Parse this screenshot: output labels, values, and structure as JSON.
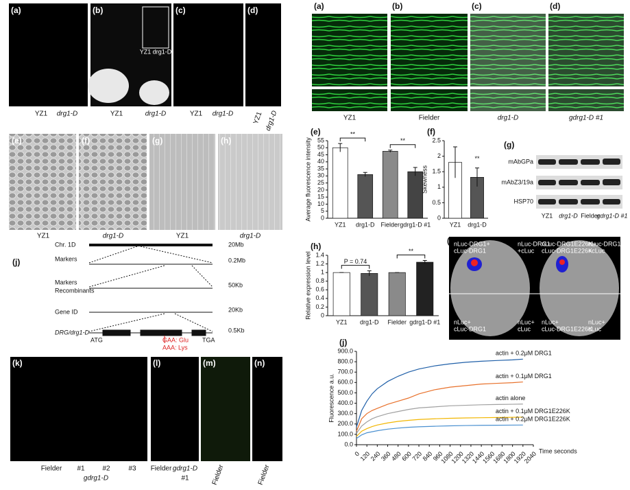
{
  "plants_top": {
    "labels": [
      "(a)",
      "(b)",
      "(c)",
      "(d)"
    ],
    "captions": [
      "YZ1",
      "drg1-D",
      "YZ1",
      "drg1-D",
      "YZ1",
      "drg1-D",
      "YZ1",
      "drg1-D"
    ],
    "inset": "YZ1  drg1-D"
  },
  "micrographs": {
    "labels": [
      "(a)",
      "(b)",
      "(c)",
      "(d)"
    ],
    "captions": [
      "YZ1",
      "Fielder",
      "drg1-D",
      "gdrg1-D #1"
    ]
  },
  "sem": {
    "labels": [
      "(e)",
      "(f)",
      "(g)",
      "(h)"
    ],
    "captions": [
      "YZ1",
      "drg1-D",
      "YZ1",
      "drg1-D"
    ]
  },
  "map": {
    "label": "(j)",
    "rows": [
      "Chr. 1D",
      "Markers",
      "Markers",
      "Recombinants",
      "Gene ID",
      "DRG/drg1-D"
    ],
    "scales": [
      "20Mb",
      "0.2Mb",
      "50Kb",
      "20Kb",
      "0.5Kb"
    ],
    "codons": [
      "ATG",
      "TGA"
    ],
    "mutation": [
      "GAA: Glu",
      "AAA: Lys"
    ]
  },
  "blot": {
    "label": "(g)",
    "rows": [
      "mAbGPa",
      "mAbZ3/19a",
      "HSP70"
    ],
    "lanes": [
      "YZ1",
      "drg1-D",
      "Fielder",
      "gdrg1-D #1"
    ]
  },
  "leaf": {
    "label": "(i)",
    "quadrants": [
      [
        "nLuc-DRG1+",
        "cLuc-DRG1"
      ],
      [
        "nLuc-DRG1",
        "+cLuc"
      ],
      [
        "nLuc-DRG1E226K+",
        "cLuc-DRG1E226K"
      ],
      [
        "nLuc-DRG1E226K",
        "+cLuc"
      ],
      [
        "nLuc+",
        "cLuc-DRG1"
      ],
      [
        "nLuc+",
        "cLuc"
      ],
      [
        "nLuc+",
        "cLuc-DRG1E226K"
      ],
      [
        "nLuc+",
        "cLuc"
      ]
    ]
  },
  "plants_bottom": {
    "labels": [
      "(k)",
      "(l)",
      "(m)",
      "(n)"
    ],
    "captions": [
      "Fielder",
      "#1",
      "#2",
      "#3",
      "gdrg1-D",
      "Fielder",
      "gdrg1-D",
      "#1",
      "Fielder",
      "Fielder"
    ]
  },
  "chart_data": [
    {
      "type": "bar",
      "panel": "(e)",
      "ylabel": "Average fluorescence intensity",
      "categories": [
        "YZ1",
        "drg1-D",
        "Fielder",
        "gdrg1-D #1"
      ],
      "values": [
        50,
        31,
        47.5,
        33
      ],
      "errors": [
        3,
        1.5,
        0.8,
        3
      ],
      "colors": [
        "#ffffff",
        "#555555",
        "#8a8a8a",
        "#444444"
      ],
      "ylim": [
        0,
        55
      ],
      "yticks": [
        0,
        5,
        10,
        15,
        20,
        25,
        30,
        35,
        40,
        45,
        50,
        55
      ],
      "annotations": [
        "**",
        "**"
      ]
    },
    {
      "type": "bar",
      "panel": "(f)",
      "ylabel": "Skewness",
      "categories": [
        "YZ1",
        "drg1-D"
      ],
      "values": [
        1.8,
        1.32
      ],
      "errors": [
        0.5,
        0.3
      ],
      "colors": [
        "#ffffff",
        "#555555"
      ],
      "ylim": [
        0,
        2.5
      ],
      "yticks": [
        0,
        0.5,
        1,
        1.5,
        2,
        2.5
      ],
      "annotations": [
        "**"
      ]
    },
    {
      "type": "bar",
      "panel": "(h)",
      "ylabel": "Relative expression level",
      "categories": [
        "YZ1",
        "drg1-D",
        "Fielder",
        "gdrg1-D #1"
      ],
      "values": [
        1,
        0.98,
        1,
        1.24
      ],
      "errors": [
        0,
        0.06,
        0,
        0.04
      ],
      "colors": [
        "#ffffff",
        "#555555",
        "#8a8a8a",
        "#222222"
      ],
      "ylim": [
        0,
        1.4
      ],
      "yticks": [
        0,
        0.2,
        0.4,
        0.6,
        0.8,
        1,
        1.2,
        1.4
      ],
      "annotations": [
        "P = 0.74",
        "**"
      ]
    },
    {
      "type": "line",
      "panel": "(j)",
      "ylabel": "Fluorescence a.u.",
      "xlabel": "Time seconds",
      "x": [
        0,
        60,
        120,
        180,
        240,
        360,
        480,
        600,
        720,
        900,
        1080,
        1260,
        1440,
        1620,
        1800,
        1920
      ],
      "series": [
        {
          "name": "actin + 0.2μM DRG1",
          "color": "#1f5fa8",
          "values": [
            170,
            330,
            420,
            490,
            540,
            610,
            660,
            700,
            730,
            760,
            780,
            795,
            805,
            812,
            818,
            825
          ]
        },
        {
          "name": "actin + 0.1μM DRG1",
          "color": "#e8702a",
          "values": [
            130,
            250,
            300,
            330,
            350,
            390,
            420,
            450,
            490,
            530,
            555,
            570,
            585,
            592,
            598,
            605
          ]
        },
        {
          "name": "actin alone",
          "color": "#a0a0a0",
          "values": [
            110,
            180,
            220,
            250,
            270,
            300,
            320,
            340,
            355,
            365,
            375,
            380,
            385,
            388,
            390,
            392
          ]
        },
        {
          "name": "actin + 0.1μM DRG1E226K",
          "color": "#f2b600",
          "values": [
            80,
            130,
            155,
            175,
            190,
            210,
            225,
            235,
            243,
            250,
            255,
            258,
            260,
            262,
            264,
            266
          ]
        },
        {
          "name": "actin + 0.2μM DRG1E226K",
          "color": "#4a90d0",
          "values": [
            60,
            95,
            115,
            125,
            135,
            150,
            160,
            168,
            173,
            178,
            182,
            185,
            187,
            188,
            189,
            190
          ]
        }
      ],
      "xlim": [
        0,
        2040
      ],
      "xticks": [
        0,
        120,
        240,
        360,
        480,
        600,
        720,
        840,
        960,
        1080,
        1200,
        1320,
        1440,
        1560,
        1680,
        1800,
        1920,
        2040
      ],
      "ylim": [
        0,
        900
      ],
      "yticks": [
        {
          "value": 0,
          "label": "0.0"
        },
        {
          "value": 100,
          "label": "100.0"
        },
        {
          "value": 200,
          "label": "200.0"
        },
        {
          "value": 300,
          "label": "300.0"
        },
        {
          "value": 400,
          "label": "400.0"
        },
        {
          "value": 500,
          "label": "500.0"
        },
        {
          "value": 600,
          "label": "600.0"
        },
        {
          "value": 700,
          "label": "700.0"
        },
        {
          "value": 800,
          "label": "800.0"
        },
        {
          "value": 900,
          "label": "900.0"
        }
      ]
    }
  ]
}
